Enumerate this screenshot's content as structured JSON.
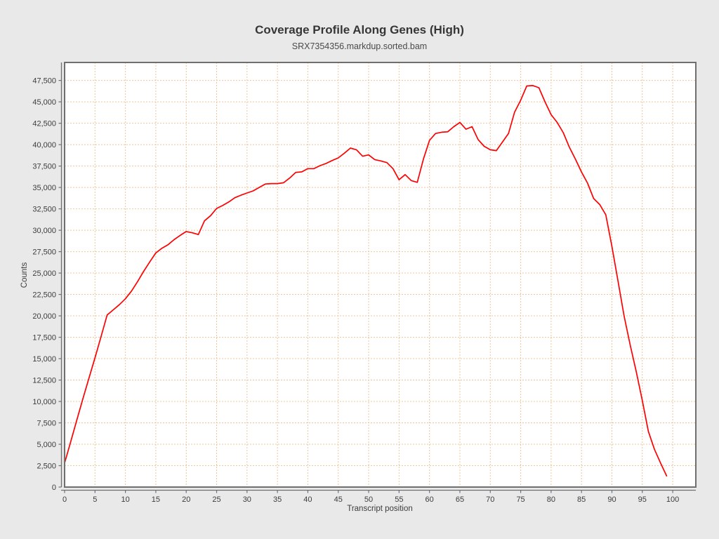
{
  "header": {
    "title": "Coverage Profile Along Genes (High)",
    "subtitle": "SRX7354356.markdup.sorted.bam"
  },
  "axes": {
    "x_label": "Transcript position",
    "y_label": "Counts"
  },
  "style": {
    "background": "#e9e9e9",
    "plot_background": "#ffffff",
    "gridline_color": "#f0c49c",
    "frame_color": "#6f6f6f",
    "tick_color": "#6f6f6f",
    "tick_label_color": "#3c3c3c",
    "title_color": "#363636",
    "subtitle_color": "#4a4a4a",
    "line_color": "#ff0000"
  },
  "chart_data": {
    "type": "line",
    "title": "Coverage Profile Along Genes (High)",
    "subtitle": "SRX7354356.markdup.sorted.bam",
    "xlabel": "Transcript position",
    "ylabel": "Counts",
    "xlim": [
      0,
      103.8
    ],
    "ylim": [
      0,
      49600
    ],
    "grid": true,
    "gridline_style": "dashed",
    "legend_position": "none",
    "x_ticks": [
      0,
      5,
      10,
      15,
      20,
      25,
      30,
      35,
      40,
      45,
      50,
      55,
      60,
      65,
      70,
      75,
      80,
      85,
      90,
      95,
      100
    ],
    "y_ticks": [
      0,
      2500,
      5000,
      7500,
      10000,
      12500,
      15000,
      17500,
      20000,
      22500,
      25000,
      27500,
      30000,
      32500,
      35000,
      37500,
      40000,
      42500,
      45000,
      47500
    ],
    "series": [
      {
        "name": "SRX7354356.markdup.sorted.bam",
        "color": "#ff0000",
        "x": [
          0,
          1,
          2,
          3,
          4,
          5,
          6,
          7,
          8,
          9,
          10,
          11,
          12,
          13,
          14,
          15,
          16,
          17,
          18,
          19,
          20,
          21,
          22,
          23,
          24,
          25,
          26,
          27,
          28,
          29,
          30,
          31,
          32,
          33,
          34,
          35,
          36,
          37,
          38,
          39,
          40,
          41,
          42,
          43,
          44,
          45,
          46,
          47,
          48,
          49,
          50,
          51,
          52,
          53,
          54,
          55,
          56,
          57,
          58,
          59,
          60,
          61,
          62,
          63,
          64,
          65,
          66,
          67,
          68,
          69,
          70,
          71,
          72,
          73,
          74,
          75,
          76,
          77,
          78,
          79,
          80,
          81,
          82,
          83,
          84,
          85,
          86,
          87,
          88,
          89,
          90,
          91,
          92,
          93,
          94,
          95,
          96,
          97,
          98,
          99
        ],
        "values": [
          2800,
          5300,
          7800,
          10300,
          12700,
          15100,
          17600,
          20100,
          20700,
          21300,
          22000,
          22900,
          24000,
          25200,
          26300,
          27350,
          27900,
          28300,
          28900,
          29400,
          29850,
          29700,
          29500,
          31100,
          31700,
          32550,
          32900,
          33300,
          33800,
          34100,
          34350,
          34600,
          35000,
          35400,
          35450,
          35450,
          35550,
          36100,
          36750,
          36820,
          37200,
          37200,
          37550,
          37800,
          38150,
          38450,
          39000,
          39600,
          39400,
          38650,
          38800,
          38250,
          38100,
          37900,
          37200,
          35900,
          36500,
          35800,
          35600,
          38300,
          40500,
          41300,
          41450,
          41500,
          42100,
          42600,
          41800,
          42100,
          40600,
          39800,
          39400,
          39300,
          40300,
          41300,
          43800,
          45200,
          46850,
          46900,
          46650,
          45000,
          43500,
          42600,
          41400,
          39700,
          38300,
          36800,
          35500,
          33700,
          33000,
          31800,
          28100,
          24100,
          20000,
          16600,
          13500,
          10100,
          6500,
          4400,
          2800,
          1300
        ]
      }
    ]
  }
}
